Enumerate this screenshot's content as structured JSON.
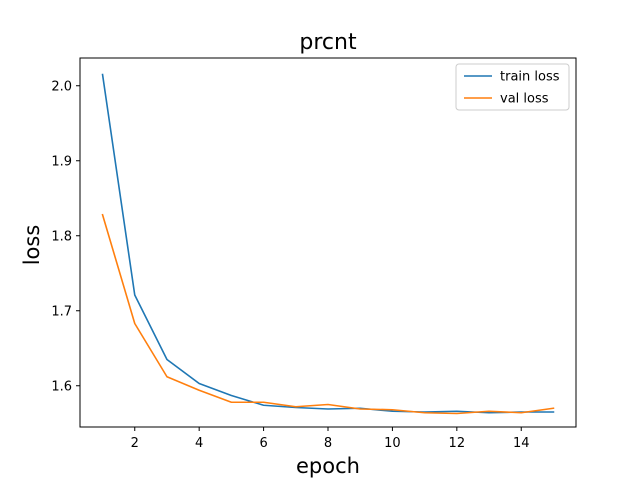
{
  "chart_data": {
    "type": "line",
    "title": "prcnt",
    "xlabel": "epoch",
    "ylabel": "loss",
    "x": [
      1,
      2,
      3,
      4,
      5,
      6,
      7,
      8,
      9,
      10,
      11,
      12,
      13,
      14,
      15
    ],
    "xlim": [
      0.3,
      15.7
    ],
    "ylim": [
      1.545,
      2.037
    ],
    "xticks": [
      2,
      4,
      6,
      8,
      10,
      12,
      14
    ],
    "xtick_labels": [
      "2",
      "4",
      "6",
      "8",
      "10",
      "12",
      "14"
    ],
    "yticks": [
      1.6,
      1.7,
      1.8,
      1.9,
      2.0
    ],
    "ytick_labels": [
      "1.6",
      "1.7",
      "1.8",
      "1.9",
      "2.0"
    ],
    "grid": false,
    "legend_position": "top-right",
    "series": [
      {
        "name": "train loss",
        "color": "#1f77b4",
        "values": [
          2.015,
          1.721,
          1.635,
          1.603,
          1.587,
          1.574,
          1.571,
          1.569,
          1.57,
          1.566,
          1.565,
          1.566,
          1.564,
          1.565,
          1.565
        ]
      },
      {
        "name": "val loss",
        "color": "#ff7f0e",
        "values": [
          1.828,
          1.683,
          1.612,
          1.594,
          1.578,
          1.578,
          1.572,
          1.575,
          1.569,
          1.568,
          1.564,
          1.563,
          1.566,
          1.564,
          1.57
        ]
      }
    ]
  }
}
